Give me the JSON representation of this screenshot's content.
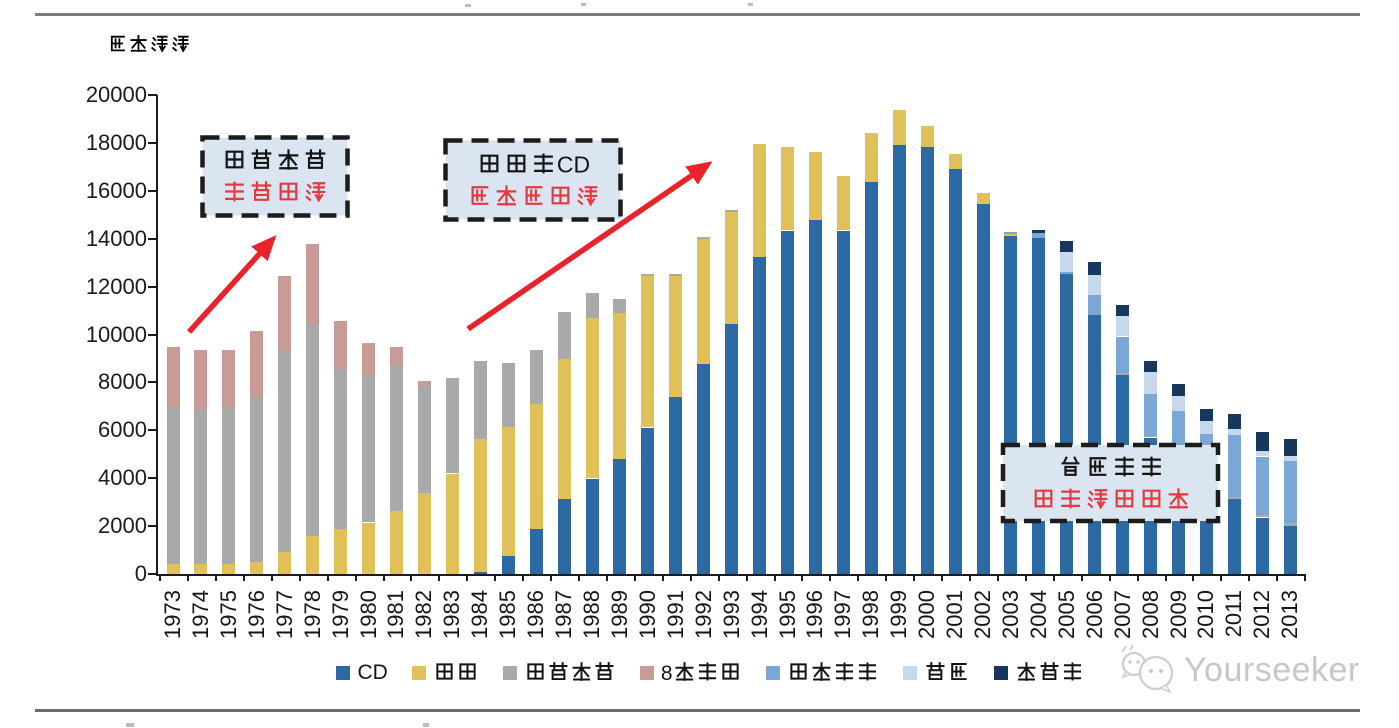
{
  "unit_label": "百万美元",
  "watermark": "Yourseeker",
  "annotations": [
    {
      "line1": "黑胶唱片",
      "line2": "音质驱动"
    },
    {
      "line1": "磁带和CD",
      "line2": "便捷性驱动"
    },
    {
      "line1": "数字音乐",
      "line2": "突破时空限制"
    }
  ],
  "chart_data": {
    "type": "bar",
    "stacked": true,
    "ylabel": "百万美元",
    "ylim": [
      0,
      20000
    ],
    "ytick_step": 2000,
    "legend_position": "bottom",
    "categories": [
      1973,
      1974,
      1975,
      1976,
      1977,
      1978,
      1979,
      1980,
      1981,
      1982,
      1983,
      1984,
      1985,
      1986,
      1987,
      1988,
      1989,
      1990,
      1991,
      1992,
      1993,
      1994,
      1995,
      1996,
      1997,
      1998,
      1999,
      2000,
      2001,
      2002,
      2003,
      2004,
      2005,
      2006,
      2007,
      2008,
      2009,
      2010,
      2011,
      2012,
      2013
    ],
    "series": [
      {
        "name": "CD",
        "color": "#2d6aa3",
        "values": [
          0,
          0,
          0,
          0,
          0,
          0,
          0,
          0,
          0,
          0,
          0,
          100,
          750,
          1900,
          3130,
          3990,
          4800,
          6120,
          7380,
          8770,
          10450,
          13260,
          14350,
          14770,
          14350,
          16370,
          17910,
          17840,
          16930,
          15470,
          14130,
          14030,
          12540,
          10800,
          8330,
          5700,
          5080,
          4000,
          3130,
          2360,
          2010
        ]
      },
      {
        "name": "磁带",
        "color": "#e0c159",
        "values": [
          400,
          400,
          400,
          500,
          930,
          1590,
          1880,
          2150,
          2640,
          3380,
          4200,
          5540,
          5400,
          5200,
          5850,
          6710,
          6110,
          6320,
          5060,
          5230,
          4690,
          4690,
          3490,
          2860,
          2260,
          2050,
          1490,
          860,
          630,
          440,
          60,
          0,
          0,
          0,
          0,
          0,
          0,
          0,
          0,
          0,
          0
        ]
      },
      {
        "name": "黑胶唱片",
        "color": "#a9a9a9",
        "values": [
          6530,
          6490,
          6530,
          6900,
          8440,
          8850,
          6700,
          6180,
          6090,
          4490,
          3990,
          3280,
          2650,
          2260,
          1950,
          1050,
          580,
          100,
          100,
          70,
          50,
          0,
          0,
          0,
          0,
          0,
          0,
          0,
          0,
          0,
          0,
          0,
          0,
          0,
          50,
          50,
          70,
          60,
          80,
          95,
          115
        ]
      },
      {
        "name": "8轨音带",
        "color": "#c89b97",
        "values": [
          2570,
          2450,
          2430,
          2750,
          3080,
          3360,
          1970,
          1310,
          740,
          210,
          0,
          0,
          0,
          0,
          0,
          0,
          0,
          0,
          0,
          0,
          0,
          0,
          0,
          0,
          0,
          0,
          0,
          0,
          0,
          0,
          0,
          0,
          0,
          0,
          0,
          0,
          0,
          0,
          0,
          0,
          0
        ]
      },
      {
        "name": "下载音乐",
        "color": "#7ba7d7",
        "values": [
          0,
          0,
          0,
          0,
          0,
          0,
          0,
          0,
          0,
          0,
          0,
          0,
          0,
          0,
          0,
          0,
          0,
          0,
          0,
          0,
          0,
          0,
          0,
          0,
          0,
          0,
          0,
          0,
          0,
          0,
          90,
          200,
          70,
          840,
          1540,
          1770,
          1670,
          1780,
          2600,
          2450,
          2600
        ]
      },
      {
        "name": "彩铃",
        "color": "#c5d8ec",
        "values": [
          0,
          0,
          0,
          0,
          0,
          0,
          0,
          0,
          0,
          0,
          0,
          0,
          0,
          0,
          0,
          0,
          0,
          0,
          0,
          0,
          0,
          0,
          0,
          0,
          0,
          0,
          0,
          0,
          0,
          0,
          0,
          0,
          840,
          840,
          840,
          900,
          630,
          560,
          240,
          240,
          210
        ]
      },
      {
        "name": "流媒体",
        "color": "#17375d",
        "values": [
          0,
          0,
          0,
          0,
          0,
          0,
          0,
          0,
          0,
          0,
          0,
          0,
          0,
          0,
          0,
          0,
          0,
          0,
          0,
          0,
          0,
          0,
          0,
          0,
          0,
          0,
          0,
          0,
          0,
          0,
          0,
          140,
          460,
          550,
          490,
          490,
          490,
          490,
          630,
          770,
          700
        ]
      }
    ]
  }
}
